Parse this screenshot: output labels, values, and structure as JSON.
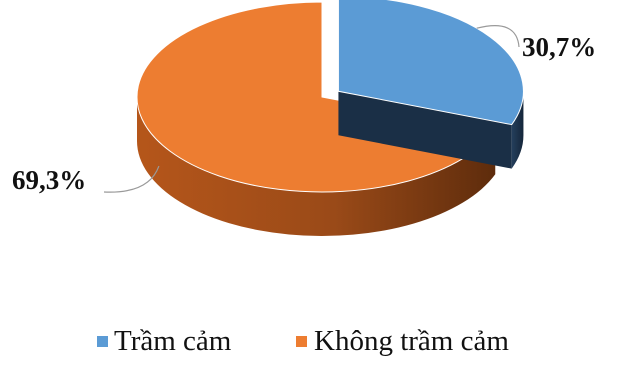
{
  "chart_data": {
    "type": "pie",
    "style": "3d-exploded",
    "title": "",
    "categories": [
      "Trầm cảm",
      "Không trầm cảm"
    ],
    "values": [
      30.7,
      69.3
    ],
    "data_labels": [
      "30,7%",
      "69,3%"
    ],
    "colors": [
      "#5B9BD5",
      "#ED7D31"
    ],
    "side_colors": [
      "#1F3A57",
      "#8A4416"
    ],
    "legend_position": "bottom"
  }
}
